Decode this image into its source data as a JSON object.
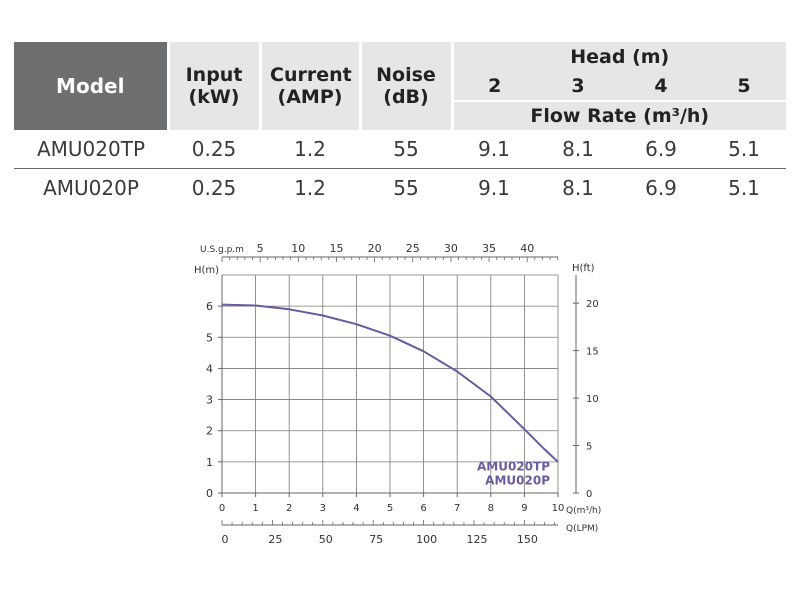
{
  "table": {
    "headers": {
      "model": "Model",
      "input": "Input (kW)",
      "current": "Current (AMP)",
      "noise": "Noise (dB)",
      "head_group": "Head (m)",
      "head_values": [
        "2",
        "3",
        "4",
        "5"
      ],
      "flow_rate": "Flow Rate (m³/h)"
    },
    "rows": [
      {
        "model": "AMU020TP",
        "input": "0.25",
        "current": "1.2",
        "noise": "55",
        "flows": [
          "9.1",
          "8.1",
          "6.9",
          "5.1"
        ]
      },
      {
        "model": "AMU020P",
        "input": "0.25",
        "current": "1.2",
        "noise": "55",
        "flows": [
          "9.1",
          "8.1",
          "6.9",
          "5.1"
        ]
      }
    ]
  },
  "chart_data": {
    "type": "line",
    "curve_color": "#6b5b9e",
    "grid": true,
    "x": {
      "label": "Q(m³/h)",
      "range": [
        0,
        10
      ],
      "ticks": [
        0,
        1,
        2,
        3,
        4,
        5,
        6,
        7,
        8,
        9,
        10
      ]
    },
    "x_top": {
      "label": "U.S.g.p.m",
      "ticks": [
        5,
        10,
        15,
        20,
        25,
        30,
        35,
        40
      ]
    },
    "x_bottom": {
      "label": "Q(LPM)",
      "ticks": [
        0,
        25,
        50,
        75,
        100,
        125,
        150
      ]
    },
    "y": {
      "label": "H(m)",
      "range": [
        0,
        7
      ],
      "ticks": [
        0,
        1,
        2,
        3,
        4,
        5,
        6
      ]
    },
    "y_right": {
      "label": "H(ft)",
      "ticks": [
        0,
        5,
        10,
        15,
        20
      ]
    },
    "series": [
      {
        "name": "AMU020TP AMU020P",
        "legend": [
          "AMU020TP",
          "AMU020P"
        ],
        "x": [
          0,
          1,
          2,
          3,
          4,
          5,
          6,
          7,
          8,
          9,
          9.6,
          10
        ],
        "y": [
          6.05,
          6.02,
          5.9,
          5.7,
          5.42,
          5.05,
          4.55,
          3.9,
          3.1,
          2.05,
          1.4,
          1.0
        ]
      }
    ]
  }
}
